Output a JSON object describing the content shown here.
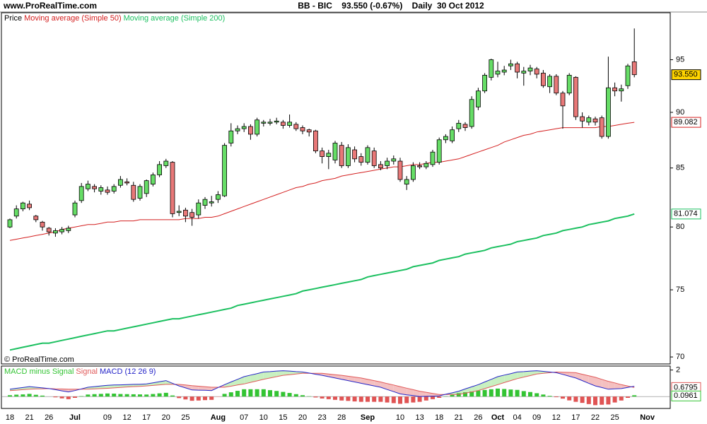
{
  "chart_data": [
    {
      "type": "candlestick",
      "site": "www.ProRealTime.com",
      "title": "BB - BIC    93.550 (-0.67%)    Daily  30 Oct 2012",
      "copyright": "© ProRealTime.com",
      "name": "Price",
      "last_label": "93.550",
      "up_color": "#66dd66",
      "down_color": "#e87878",
      "label_color": "#ffd400",
      "open": [
        80.0,
        80.9,
        81.5,
        81.9,
        80.9,
        80.4,
        79.9,
        79.5,
        79.6,
        79.7,
        81.0,
        82.2,
        83.2,
        83.4,
        83.0,
        83.1,
        83.0,
        83.5,
        83.8,
        83.5,
        82.4,
        82.8,
        83.6,
        84.4,
        85.2,
        85.5,
        81.2,
        81.4,
        81.2,
        81.0,
        81.8,
        82.0,
        82.3,
        82.6,
        87.2,
        88.3,
        88.5,
        88.7,
        88.0,
        89.0,
        89.0,
        89.1,
        89.1,
        88.8,
        88.9,
        88.6,
        88.4,
        88.3,
        86.5,
        86.0,
        85.7,
        87.0,
        85.2,
        86.6,
        86.0,
        85.5,
        86.5,
        85.3,
        85.2,
        85.6,
        85.6,
        83.6,
        84.0,
        85.2,
        85.1,
        85.3,
        85.5,
        87.5,
        87.4,
        88.5,
        88.9,
        88.7,
        90.5,
        92.0,
        93.3,
        93.6,
        93.8,
        94.4,
        94.6,
        93.7,
        93.9,
        94.1,
        93.7,
        92.4,
        93.4,
        91.8,
        91.8,
        93.3,
        89.6,
        89.1,
        89.4,
        89.5,
        87.8,
        92.3,
        92.0,
        92.5,
        94.8,
        null,
        null
      ],
      "high": [
        80.7,
        81.8,
        82.1,
        82.2,
        81.0,
        80.5,
        80.0,
        79.9,
        80.0,
        80.1,
        82.2,
        83.7,
        83.9,
        83.6,
        83.5,
        83.4,
        83.6,
        84.3,
        84.1,
        83.8,
        83.6,
        84.0,
        84.6,
        85.6,
        85.8,
        85.6,
        81.8,
        81.6,
        81.5,
        82.3,
        82.5,
        82.6,
        83.0,
        87.2,
        89.0,
        88.8,
        89.0,
        88.9,
        89.5,
        89.3,
        89.4,
        89.5,
        89.3,
        89.8,
        89.1,
        88.8,
        88.5,
        88.4,
        86.8,
        86.6,
        87.4,
        87.3,
        87.1,
        86.9,
        86.3,
        87.0,
        86.8,
        85.6,
        85.9,
        86.1,
        85.9,
        84.3,
        85.5,
        85.5,
        85.6,
        86.6,
        87.7,
        88.0,
        88.7,
        89.3,
        89.1,
        91.5,
        92.3,
        93.7,
        95.1,
        94.8,
        94.4,
        95.0,
        94.8,
        94.3,
        94.5,
        94.3,
        94.0,
        93.6,
        93.6,
        92.0,
        93.7,
        93.4,
        90.0,
        89.7,
        89.6,
        89.7,
        95.3,
        92.8,
        92.6,
        94.6,
        98.1,
        null,
        null
      ],
      "low": [
        79.9,
        80.7,
        81.3,
        81.4,
        80.4,
        79.7,
        79.3,
        79.2,
        79.4,
        79.5,
        80.8,
        82.0,
        83.0,
        82.9,
        82.7,
        82.7,
        82.8,
        83.3,
        83.5,
        82.1,
        82.2,
        82.5,
        83.4,
        84.2,
        85.0,
        80.8,
        80.9,
        80.4,
        80.1,
        80.7,
        81.5,
        81.7,
        82.0,
        82.5,
        86.9,
        88.0,
        88.2,
        87.5,
        87.8,
        88.7,
        88.8,
        88.9,
        88.5,
        88.6,
        88.3,
        88.0,
        87.8,
        86.3,
        85.4,
        84.9,
        85.4,
        85.0,
        85.0,
        85.5,
        85.2,
        85.3,
        85.0,
        84.8,
        84.9,
        85.3,
        83.8,
        83.1,
        83.8,
        84.9,
        84.9,
        85.1,
        85.3,
        87.2,
        87.2,
        88.2,
        88.3,
        88.5,
        90.2,
        91.8,
        93.0,
        93.3,
        93.5,
        94.0,
        93.2,
        92.5,
        93.5,
        93.2,
        92.3,
        91.8,
        91.6,
        88.5,
        91.6,
        89.3,
        88.6,
        88.8,
        88.8,
        87.6,
        87.6,
        91.5,
        91.0,
        92.2,
        93.3,
        null,
        null
      ],
      "close": [
        80.6,
        81.5,
        82.0,
        81.6,
        80.6,
        80.0,
        79.6,
        79.7,
        79.8,
        79.9,
        82.0,
        83.4,
        83.6,
        83.2,
        83.3,
        82.9,
        83.4,
        84.0,
        83.7,
        82.3,
        83.4,
        83.9,
        84.4,
        85.3,
        85.6,
        81.1,
        81.3,
        80.9,
        80.8,
        82.0,
        82.3,
        82.1,
        82.7,
        87.0,
        88.3,
        88.5,
        88.7,
        88.0,
        89.3,
        89.1,
        89.1,
        89.2,
        88.8,
        89.1,
        88.5,
        88.3,
        88.2,
        86.5,
        86.0,
        86.3,
        87.2,
        85.2,
        86.8,
        85.8,
        85.5,
        86.8,
        85.2,
        85.0,
        85.6,
        85.8,
        84.0,
        84.0,
        85.2,
        85.1,
        85.4,
        86.4,
        87.5,
        87.8,
        88.4,
        89.0,
        88.6,
        91.2,
        92.0,
        93.5,
        95.0,
        93.9,
        94.0,
        94.6,
        93.8,
        93.9,
        94.2,
        93.6,
        92.5,
        93.4,
        91.8,
        90.6,
        93.5,
        89.6,
        89.2,
        89.5,
        89.1,
        87.8,
        92.3,
        92.0,
        92.2,
        94.4,
        93.55,
        null,
        null
      ],
      "series": [
        {
          "name": "Moving average (Simple 50)",
          "color": "#d42020",
          "last_label": "89.082",
          "values": [
            78.9,
            79.0,
            79.1,
            79.2,
            79.3,
            79.4,
            79.5,
            79.6,
            79.8,
            79.9,
            80.0,
            80.1,
            80.2,
            80.2,
            80.3,
            80.4,
            80.4,
            80.5,
            80.5,
            80.5,
            80.6,
            80.6,
            80.6,
            80.6,
            80.6,
            80.6,
            80.6,
            80.7,
            80.7,
            80.7,
            80.8,
            80.8,
            80.9,
            81.1,
            81.3,
            81.5,
            81.7,
            81.9,
            82.1,
            82.3,
            82.5,
            82.7,
            82.9,
            83.1,
            83.3,
            83.4,
            83.6,
            83.7,
            83.9,
            84.0,
            84.1,
            84.3,
            84.4,
            84.5,
            84.6,
            84.7,
            84.8,
            84.9,
            85.0,
            85.1,
            85.1,
            85.2,
            85.3,
            85.3,
            85.4,
            85.5,
            85.5,
            85.6,
            85.7,
            85.8,
            86.0,
            86.2,
            86.4,
            86.6,
            86.8,
            87.0,
            87.3,
            87.5,
            87.7,
            87.9,
            88.0,
            88.2,
            88.3,
            88.4,
            88.5,
            88.6,
            88.6,
            88.6,
            88.6,
            88.6,
            88.6,
            88.7,
            88.7,
            88.8,
            88.9,
            89.0,
            89.082,
            null,
            null
          ]
        },
        {
          "name": "Moving average (Simple 200)",
          "color": "#1cc060",
          "last_label": "81.074",
          "values": [
            70.5,
            70.6,
            70.7,
            70.8,
            70.9,
            71.0,
            71.0,
            71.1,
            71.2,
            71.3,
            71.4,
            71.5,
            71.6,
            71.7,
            71.8,
            71.9,
            71.9,
            72.0,
            72.1,
            72.2,
            72.3,
            72.4,
            72.5,
            72.6,
            72.7,
            72.8,
            72.8,
            72.9,
            73.0,
            73.1,
            73.2,
            73.3,
            73.4,
            73.5,
            73.6,
            73.8,
            73.9,
            74.0,
            74.1,
            74.2,
            74.3,
            74.4,
            74.5,
            74.6,
            74.7,
            74.9,
            75.0,
            75.1,
            75.2,
            75.3,
            75.4,
            75.5,
            75.6,
            75.7,
            75.8,
            76.0,
            76.1,
            76.2,
            76.3,
            76.4,
            76.5,
            76.6,
            76.8,
            76.9,
            77.0,
            77.1,
            77.3,
            77.4,
            77.5,
            77.6,
            77.8,
            77.9,
            78.0,
            78.1,
            78.3,
            78.4,
            78.5,
            78.6,
            78.8,
            78.9,
            79.0,
            79.1,
            79.3,
            79.4,
            79.5,
            79.7,
            79.8,
            79.9,
            80.0,
            80.2,
            80.3,
            80.4,
            80.5,
            80.7,
            80.8,
            80.9,
            81.074,
            null,
            null
          ]
        }
      ],
      "ylim": [
        69.5,
        99.7
      ],
      "yticks": [
        70,
        75,
        80,
        85,
        90,
        95
      ],
      "log_scale": true
    },
    {
      "type": "macd",
      "series": [
        {
          "name": "MACD minus Signal",
          "color": "#33c433",
          "negative_color": "#e05454",
          "kind": "bar",
          "last_label": "0.0961",
          "values": [
            0.1,
            0.14,
            0.16,
            0.2,
            0.13,
            0.07,
            0.0,
            -0.06,
            -0.14,
            -0.2,
            -0.1,
            0.03,
            0.15,
            0.18,
            0.2,
            0.23,
            0.22,
            0.19,
            0.18,
            0.17,
            0.16,
            0.15,
            0.19,
            0.24,
            0.28,
            0.08,
            -0.12,
            -0.22,
            -0.32,
            -0.3,
            -0.27,
            -0.25,
            -0.02,
            0.2,
            0.32,
            0.43,
            0.55,
            0.55,
            0.55,
            0.55,
            0.48,
            0.42,
            0.35,
            0.27,
            0.18,
            0.1,
            0.02,
            -0.07,
            -0.15,
            -0.2,
            -0.25,
            -0.3,
            -0.33,
            -0.37,
            -0.4,
            -0.4,
            -0.4,
            -0.4,
            -0.45,
            -0.5,
            -0.55,
            -0.5,
            -0.45,
            -0.4,
            -0.3,
            -0.2,
            -0.1,
            0.02,
            0.13,
            0.25,
            0.32,
            0.38,
            0.45,
            0.5,
            0.55,
            0.6,
            0.57,
            0.53,
            0.5,
            0.41,
            0.34,
            0.25,
            0.15,
            0.05,
            -0.05,
            -0.16,
            -0.29,
            -0.4,
            -0.48,
            -0.57,
            -0.65,
            -0.62,
            -0.6,
            -0.45,
            -0.3,
            -0.1,
            0.0961,
            null,
            null
          ]
        },
        {
          "name": "Signal",
          "color": "#e05a5a",
          "last_label": "0.6795",
          "values": [
            0.45,
            0.48,
            0.52,
            0.55,
            0.57,
            0.58,
            0.6,
            0.58,
            0.57,
            0.55,
            0.55,
            0.55,
            0.55,
            0.57,
            0.6,
            0.62,
            0.65,
            0.69,
            0.72,
            0.75,
            0.77,
            0.8,
            0.84,
            0.88,
            0.92,
            0.92,
            0.92,
            0.87,
            0.82,
            0.78,
            0.74,
            0.7,
            0.7,
            0.7,
            0.78,
            0.87,
            0.95,
            1.07,
            1.18,
            1.3,
            1.4,
            1.5,
            1.6,
            1.65,
            1.7,
            1.75,
            1.75,
            1.75,
            1.75,
            1.7,
            1.65,
            1.6,
            1.53,
            1.47,
            1.4,
            1.3,
            1.2,
            1.1,
            0.98,
            0.87,
            0.75,
            0.63,
            0.52,
            0.4,
            0.32,
            0.23,
            0.15,
            0.15,
            0.15,
            0.15,
            0.25,
            0.35,
            0.45,
            0.6,
            0.75,
            0.9,
            1.05,
            1.2,
            1.35,
            1.47,
            1.58,
            1.7,
            1.75,
            1.8,
            1.85,
            1.83,
            1.82,
            1.8,
            1.68,
            1.57,
            1.45,
            1.3,
            1.15,
            1.03,
            0.9,
            0.79,
            0.6795,
            null,
            null
          ]
        },
        {
          "name": "MACD (12 26 9)",
          "color": "#2424c8",
          "values": [
            0.55,
            0.62,
            0.68,
            0.75,
            0.7,
            0.65,
            0.6,
            0.52,
            0.43,
            0.35,
            0.45,
            0.58,
            0.7,
            0.75,
            0.8,
            0.85,
            0.87,
            0.88,
            0.9,
            0.92,
            0.93,
            0.95,
            1.03,
            1.12,
            1.2,
            1.0,
            0.8,
            0.65,
            0.5,
            0.48,
            0.47,
            0.45,
            0.68,
            0.9,
            1.1,
            1.3,
            1.5,
            1.62,
            1.73,
            1.85,
            1.88,
            1.92,
            1.95,
            1.92,
            1.88,
            1.85,
            1.77,
            1.68,
            1.6,
            1.5,
            1.4,
            1.3,
            1.2,
            1.1,
            1.0,
            0.9,
            0.8,
            0.7,
            0.53,
            0.37,
            0.2,
            0.13,
            0.07,
            0.0,
            0.02,
            0.03,
            0.05,
            0.17,
            0.28,
            0.4,
            0.57,
            0.73,
            0.9,
            1.1,
            1.3,
            1.5,
            1.62,
            1.73,
            1.85,
            1.88,
            1.92,
            1.95,
            1.9,
            1.85,
            1.8,
            1.67,
            1.53,
            1.4,
            1.2,
            1.0,
            0.8,
            0.68,
            0.55,
            0.58,
            0.6,
            0.69,
            0.7756,
            null,
            null
          ]
        }
      ],
      "ylim": [
        -0.9,
        2.3
      ],
      "yticks": [
        2
      ],
      "categories": [
        "18",
        null,
        null,
        "21",
        null,
        null,
        "26",
        null,
        null,
        null,
        "Jul",
        null,
        null,
        null,
        null,
        "09",
        null,
        null,
        "12",
        null,
        null,
        "17",
        null,
        null,
        "20",
        null,
        null,
        "25",
        null,
        null,
        null,
        null,
        "Aug",
        null,
        null,
        null,
        "07",
        null,
        null,
        "10",
        null,
        null,
        "15",
        null,
        null,
        "20",
        null,
        null,
        "23",
        null,
        null,
        "28",
        null,
        null,
        null,
        "Sep",
        null,
        null,
        null,
        null,
        "10",
        null,
        null,
        "13",
        null,
        null,
        "18",
        null,
        null,
        "21",
        null,
        null,
        "26",
        null,
        null,
        "Oct",
        null,
        null,
        "04",
        null,
        null,
        "09",
        null,
        null,
        "12",
        null,
        null,
        "17",
        null,
        null,
        "22",
        null,
        null,
        "25",
        null,
        null,
        null,
        null,
        "Nov"
      ]
    }
  ]
}
